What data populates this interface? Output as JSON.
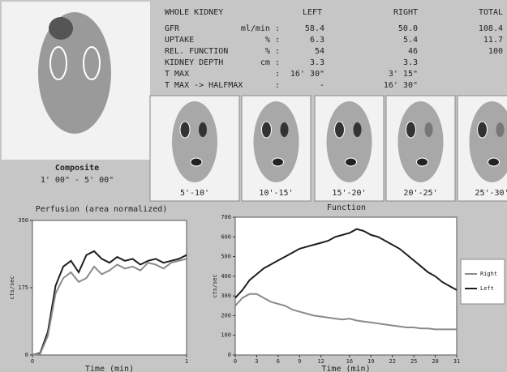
{
  "table": {
    "header": [
      "WHOLE KIDNEY",
      "LEFT",
      "RIGHT",
      "TOTAL"
    ],
    "rows": [
      {
        "label": "GFR",
        "unit": "ml/min :",
        "values": [
          "58.4",
          "50.0",
          "108.4"
        ]
      },
      {
        "label": "UPTAKE",
        "unit": "% :",
        "values": [
          "6.3",
          "5.4",
          "11.7"
        ]
      },
      {
        "label": "REL. FUNCTION",
        "unit": "% :",
        "values": [
          "54",
          "46",
          "100"
        ]
      },
      {
        "label": "KIDNEY DEPTH",
        "unit": "cm :",
        "values": [
          "3.3",
          "3.3"
        ]
      },
      {
        "label": "T MAX",
        "unit": ":",
        "values": [
          "16' 30\"",
          "3' 15\""
        ]
      },
      {
        "label": "T MAX -> HALFMAX",
        "unit": ":",
        "values": [
          "-",
          "16' 30\""
        ]
      }
    ]
  },
  "composite": {
    "title": "Composite",
    "range": "1' 00\" - 5' 00\""
  },
  "frames": [
    "5'-10'",
    "10'-15'",
    "15'-20'",
    "20'-25'",
    "25'-30'"
  ],
  "chart_data": [
    {
      "type": "line",
      "title": "Perfusion (area normalized)",
      "x_label": "Time (min)",
      "y_label": "cts/sec",
      "xlim": [
        0,
        1
      ],
      "xticks": [
        0,
        1
      ],
      "ylim": [
        0,
        350
      ],
      "yticks": [
        0,
        175,
        350
      ],
      "x": [
        0,
        0.05,
        0.1,
        0.15,
        0.2,
        0.25,
        0.3,
        0.35,
        0.4,
        0.45,
        0.5,
        0.55,
        0.6,
        0.65,
        0.7,
        0.75,
        0.8,
        0.85,
        0.9,
        0.95,
        1
      ],
      "series": [
        {
          "color": "#1e1e1e",
          "values": [
            0,
            5,
            60,
            180,
            230,
            245,
            215,
            260,
            270,
            250,
            240,
            255,
            245,
            250,
            235,
            245,
            250,
            240,
            245,
            250,
            260
          ]
        },
        {
          "color": "#8a8a8a",
          "values": [
            0,
            3,
            50,
            160,
            200,
            215,
            190,
            200,
            230,
            210,
            220,
            235,
            225,
            230,
            220,
            240,
            235,
            225,
            240,
            245,
            250
          ]
        }
      ]
    },
    {
      "type": "line",
      "title": "Function",
      "x_label": "Time (min)",
      "y_label": "cts/sec",
      "legend": "right",
      "xlim": [
        0,
        31
      ],
      "xticks": [
        0,
        3,
        6,
        9,
        12,
        16,
        19,
        22,
        25,
        28,
        31
      ],
      "ylim": [
        0,
        700
      ],
      "yticks": [
        0,
        100,
        200,
        300,
        400,
        500,
        600,
        700
      ],
      "x": [
        0,
        1,
        2,
        3,
        4,
        5,
        6,
        7,
        8,
        9,
        10,
        11,
        12,
        13,
        14,
        15,
        16,
        17,
        18,
        19,
        20,
        21,
        22,
        23,
        24,
        25,
        26,
        27,
        28,
        29,
        30,
        31
      ],
      "series": [
        {
          "name": "Right",
          "color": "#8a8a8a",
          "values": [
            250,
            290,
            310,
            310,
            290,
            270,
            260,
            250,
            230,
            220,
            210,
            200,
            195,
            190,
            185,
            180,
            185,
            175,
            170,
            165,
            160,
            155,
            150,
            145,
            140,
            140,
            135,
            135,
            130,
            130,
            130,
            130
          ]
        },
        {
          "name": "Left",
          "color": "#1e1e1e",
          "values": [
            290,
            330,
            380,
            410,
            440,
            460,
            480,
            500,
            520,
            540,
            550,
            560,
            570,
            580,
            600,
            610,
            620,
            640,
            630,
            610,
            600,
            580,
            560,
            540,
            510,
            480,
            450,
            420,
            400,
            370,
            350,
            330
          ]
        }
      ]
    }
  ]
}
